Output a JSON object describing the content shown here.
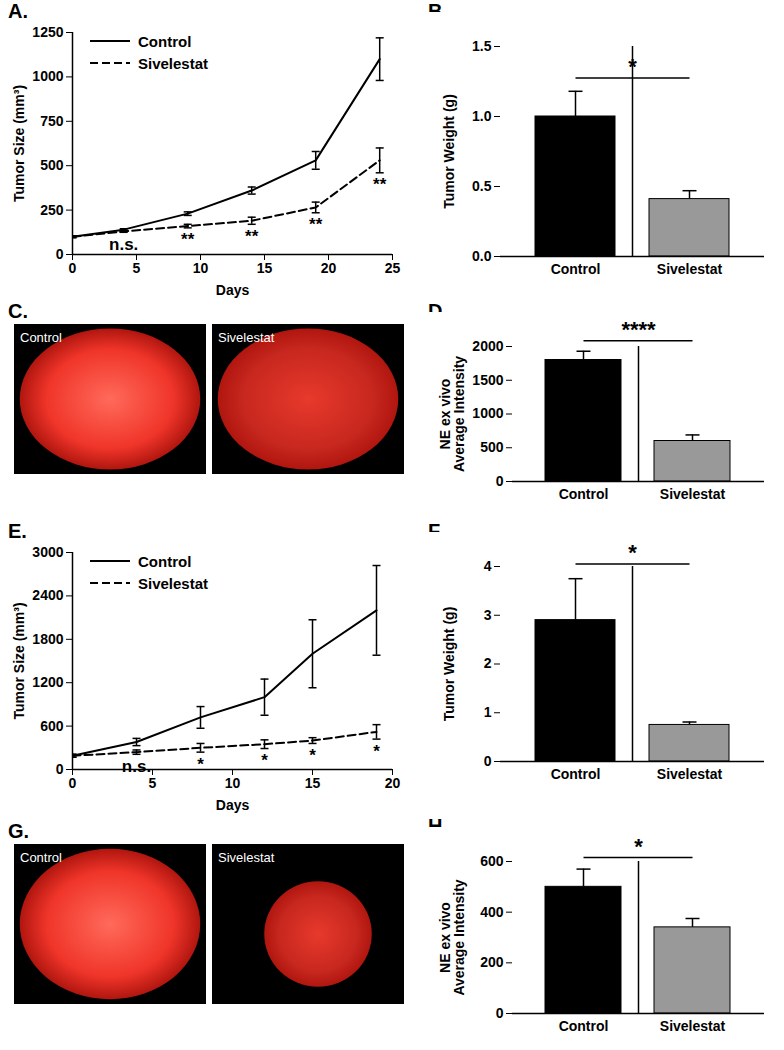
{
  "chart_data": [
    {
      "panel": "A.",
      "type": "line",
      "xlabel": "Days",
      "ylabel": "Tumor Size (mm³)",
      "x": [
        0,
        4,
        9,
        14,
        19,
        24
      ],
      "xlim": [
        0,
        25
      ],
      "xticks": [
        0,
        5,
        10,
        15,
        20,
        25
      ],
      "ylim": [
        0,
        1250
      ],
      "yticks": [
        0,
        250,
        500,
        750,
        1000,
        1250
      ],
      "legend": "upper left",
      "series": [
        {
          "name": "Control",
          "color": "#000000",
          "line_style": "solid",
          "values": [
            100,
            140,
            230,
            360,
            530,
            1100
          ],
          "errors": [
            5,
            5,
            10,
            20,
            50,
            120
          ]
        },
        {
          "name": "Sivelestat",
          "color": "#000000",
          "line_style": "dashed",
          "values": [
            100,
            130,
            160,
            190,
            265,
            530
          ],
          "errors": [
            5,
            5,
            10,
            20,
            30,
            70
          ],
          "annotations": [
            {
              "x": 4,
              "text": "n.s."
            },
            {
              "x": 9,
              "text": "**"
            },
            {
              "x": 14,
              "text": "**"
            },
            {
              "x": 19,
              "text": "**"
            },
            {
              "x": 24,
              "text": "**"
            }
          ]
        }
      ]
    },
    {
      "panel": "B.",
      "type": "bar",
      "ylabel": "Tumor Weight (g)",
      "categories": [
        "Control",
        "Sivelestat"
      ],
      "values": [
        1.0,
        0.41
      ],
      "errors": [
        0.18,
        0.06
      ],
      "colors": [
        "#000000",
        "#999999"
      ],
      "ylim": [
        0,
        1.5
      ],
      "yticks": [
        {
          "value": 0,
          "label": "0.0"
        },
        {
          "value": 0.5,
          "label": "0.5"
        },
        {
          "value": 1,
          "label": "1.0"
        },
        {
          "value": 1.5,
          "label": "1.5"
        }
      ],
      "significance": "*"
    },
    {
      "panel": "C.",
      "type": "image",
      "labels": [
        "Control",
        "Sivelestat"
      ]
    },
    {
      "panel": "D.",
      "type": "bar",
      "ylabel": "NE ex vivo\nAverage Intensity",
      "categories": [
        "Control",
        "Sivelestat"
      ],
      "values": [
        1800,
        600
      ],
      "errors": [
        130,
        90
      ],
      "colors": [
        "#000000",
        "#999999"
      ],
      "ylim": [
        0,
        2000
      ],
      "yticks": [
        0,
        500,
        1000,
        1500,
        2000
      ],
      "significance": "****"
    },
    {
      "panel": "E.",
      "type": "line",
      "xlabel": "Days",
      "ylabel": "Tumor Size (mm³)",
      "x": [
        0,
        4,
        8,
        12,
        15,
        19
      ],
      "xlim": [
        0,
        20
      ],
      "xticks": [
        0,
        5,
        10,
        15,
        20
      ],
      "ylim": [
        0,
        3000
      ],
      "yticks": [
        0,
        600,
        1200,
        1800,
        2400,
        3000
      ],
      "legend": "upper left",
      "series": [
        {
          "name": "Control",
          "color": "#000000",
          "line_style": "solid",
          "values": [
            190,
            380,
            720,
            1000,
            1600,
            2200
          ],
          "errors": [
            20,
            50,
            150,
            250,
            470,
            620
          ]
        },
        {
          "name": "Sivelestat",
          "color": "#000000",
          "line_style": "dashed",
          "values": [
            190,
            240,
            300,
            350,
            400,
            520
          ],
          "errors": [
            20,
            30,
            60,
            60,
            40,
            100
          ],
          "annotations": [
            {
              "x": 4,
              "text": "n.s."
            },
            {
              "x": 8,
              "text": "*"
            },
            {
              "x": 12,
              "text": "*"
            },
            {
              "x": 15,
              "text": "*"
            },
            {
              "x": 19,
              "text": "*"
            }
          ]
        }
      ]
    },
    {
      "panel": "F.",
      "type": "bar",
      "ylabel": "Tumor Weight (g)",
      "categories": [
        "Control",
        "Sivelestat"
      ],
      "values": [
        2.9,
        0.75
      ],
      "errors": [
        0.85,
        0.06
      ],
      "colors": [
        "#000000",
        "#999999"
      ],
      "ylim": [
        0,
        4
      ],
      "yticks": [
        0,
        1,
        2,
        3,
        4
      ],
      "significance": "*"
    },
    {
      "panel": "G.",
      "type": "image",
      "labels": [
        "Control",
        "Sivelestat"
      ]
    },
    {
      "panel": "H.",
      "type": "bar",
      "ylabel": "NE ex vivo\nAverage Intensity",
      "categories": [
        "Control",
        "Sivelestat"
      ],
      "values": [
        500,
        340
      ],
      "errors": [
        70,
        35
      ],
      "colors": [
        "#000000",
        "#999999"
      ],
      "ylim": [
        0,
        600
      ],
      "yticks": [
        0,
        200,
        400,
        600
      ],
      "significance": "*"
    }
  ]
}
